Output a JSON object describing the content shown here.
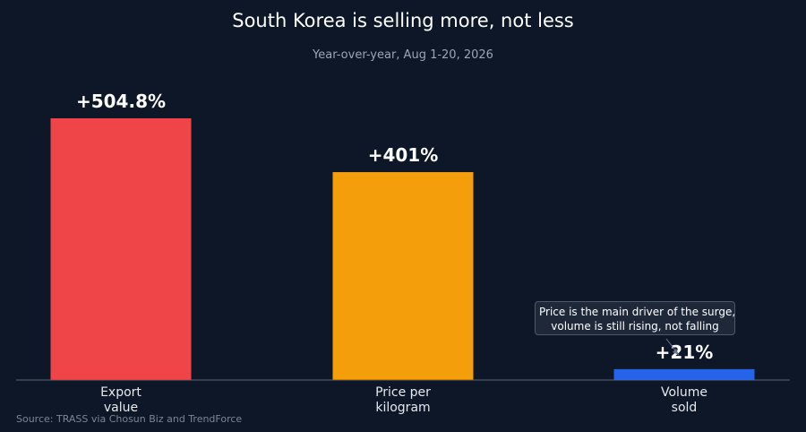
{
  "title": "South Korea is selling more, not less",
  "subtitle": "Year-over-year, Aug 1-20, 2026",
  "source": "Source: TRASS via Chosun Biz and TrendForce",
  "annotation": {
    "line1": "Price is the main driver of the surge,",
    "line2": "volume is still rising, not falling"
  },
  "colors": {
    "background": "#0d1727",
    "axis": "#5b6577"
  },
  "chart_data": {
    "type": "bar",
    "categories": [
      [
        "Export",
        "value"
      ],
      [
        "Price per",
        "kilogram"
      ],
      [
        "Volume",
        "sold"
      ]
    ],
    "values": [
      504.8,
      401,
      21
    ],
    "value_labels": [
      "+504.8%",
      "+401%",
      "+21%"
    ],
    "bar_colors": [
      "#ef4448",
      "#f59e0b",
      "#2563eb"
    ],
    "ylim": [
      0,
      504.8
    ],
    "grid": false,
    "xlabel": "",
    "ylabel": ""
  }
}
